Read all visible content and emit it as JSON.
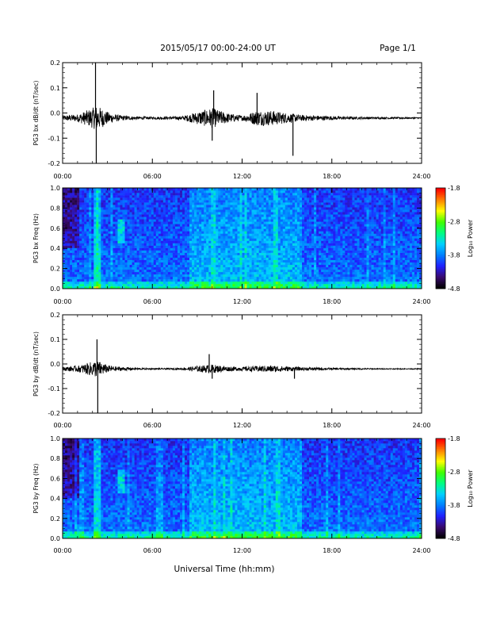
{
  "header": {
    "title": "2015/05/17  00:00-24:00 UT",
    "page": "Page 1/1"
  },
  "footer": {
    "xlabel": "Universal Time (hh:mm)"
  },
  "colorbar": {
    "label": "Log₁₀ Power",
    "ticks": [
      "-1.8",
      "-2.8",
      "-3.8",
      "-4.8"
    ],
    "range": [
      -4.8,
      -1.8
    ],
    "colors": [
      "#000000",
      "#3a0a6e",
      "#2020ff",
      "#0080ff",
      "#00d0ff",
      "#00ff80",
      "#40ff00",
      "#ffff00",
      "#ff8000",
      "#ff0000"
    ]
  },
  "x_ticks": [
    "00:00",
    "06:00",
    "12:00",
    "18:00",
    "24:00"
  ],
  "chart_data": [
    {
      "type": "line",
      "name": "bx-dbdt",
      "ylabel": "PG3 bx dB/dt (nT/sec)",
      "yticks": [
        "0.2",
        "0.1",
        "0.0",
        "-0.1",
        "-0.2"
      ],
      "ylim": [
        -0.2,
        0.2
      ],
      "xlim_hours": [
        0,
        24
      ],
      "baseline": -0.02,
      "amplitude_profile_hours": [
        0,
        1,
        2,
        2.3,
        3,
        3.5,
        4,
        5,
        6,
        7,
        8,
        9,
        10,
        11,
        12,
        13,
        14,
        15,
        16,
        17,
        18,
        19,
        20,
        21,
        22,
        23,
        24
      ],
      "amplitude_profile_values": [
        0.01,
        0.015,
        0.04,
        0.05,
        0.025,
        0.015,
        0.01,
        0.006,
        0.005,
        0.006,
        0.007,
        0.025,
        0.04,
        0.02,
        0.01,
        0.03,
        0.03,
        0.02,
        0.012,
        0.01,
        0.008,
        0.006,
        0.005,
        0.004,
        0.004,
        0.003,
        0.003
      ],
      "spikes": [
        {
          "x": 2.2,
          "y": 0.2
        },
        {
          "x": 2.25,
          "y": -0.2
        },
        {
          "x": 10.1,
          "y": 0.09
        },
        {
          "x": 10.0,
          "y": -0.11
        },
        {
          "x": 13.0,
          "y": 0.08
        },
        {
          "x": 15.4,
          "y": -0.17
        }
      ]
    },
    {
      "type": "heatmap",
      "name": "bx-spectrogram",
      "ylabel": "PG3 bx Freq (Hz)",
      "yticks": [
        "1.0",
        "0.8",
        "0.6",
        "0.4",
        "0.2",
        "0.0"
      ],
      "ylim": [
        0,
        1.0
      ],
      "xlim_hours": [
        0,
        24
      ],
      "zlim": [
        -4.8,
        -1.8
      ]
    },
    {
      "type": "line",
      "name": "by-dbdt",
      "ylabel": "PG3 by dB/dt (nT/sec)",
      "yticks": [
        "0.2",
        "0.1",
        "0.0",
        "-0.1",
        "-0.2"
      ],
      "ylim": [
        -0.2,
        0.2
      ],
      "xlim_hours": [
        0,
        24
      ],
      "baseline": -0.02,
      "amplitude_profile_hours": [
        0,
        1,
        2,
        2.3,
        3,
        3.5,
        4,
        5,
        6,
        7,
        8,
        9,
        10,
        11,
        12,
        13,
        14,
        15,
        16,
        17,
        18,
        19,
        20,
        21,
        22,
        23,
        24
      ],
      "amplitude_profile_values": [
        0.008,
        0.012,
        0.03,
        0.035,
        0.015,
        0.01,
        0.008,
        0.004,
        0.003,
        0.003,
        0.004,
        0.012,
        0.018,
        0.01,
        0.008,
        0.012,
        0.014,
        0.01,
        0.007,
        0.006,
        0.004,
        0.003,
        0.003,
        0.002,
        0.002,
        0.002,
        0.002
      ],
      "spikes": [
        {
          "x": 2.3,
          "y": 0.1
        },
        {
          "x": 2.35,
          "y": -0.2
        },
        {
          "x": 9.8,
          "y": 0.04
        },
        {
          "x": 10.0,
          "y": -0.06
        },
        {
          "x": 15.5,
          "y": -0.06
        }
      ]
    },
    {
      "type": "heatmap",
      "name": "by-spectrogram",
      "ylabel": "PG3 by Freq (Hz)",
      "yticks": [
        "1.0",
        "0.8",
        "0.6",
        "0.4",
        "0.2",
        "0.0"
      ],
      "ylim": [
        0,
        1.0
      ],
      "xlim_hours": [
        0,
        24
      ],
      "zlim": [
        -4.8,
        -1.8
      ]
    }
  ]
}
